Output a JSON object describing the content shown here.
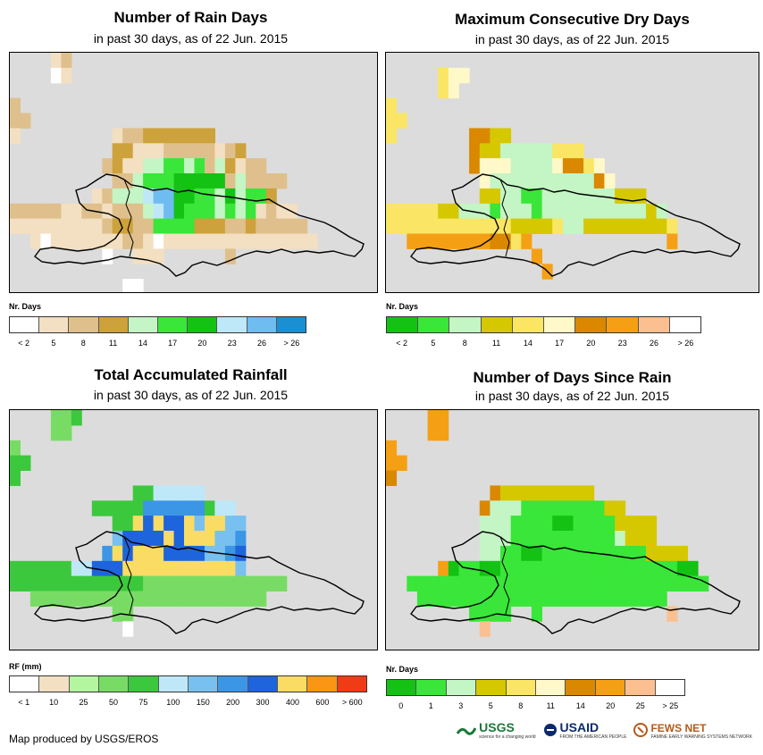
{
  "period_subtitle": "in past 30 days, as of 22 Jun. 2015",
  "footer": "Map produced by USGS/EROS",
  "logos": [
    {
      "name": "USGS",
      "tagline": "science for a changing world",
      "color": "#1a7a3a"
    },
    {
      "name": "USAID",
      "tagline": "FROM THE AMERICAN PEOPLE",
      "color": "#0b2a6b"
    },
    {
      "name": "FEWS NET",
      "tagline": "FAMINE EARLY WARNING SYSTEMS NETWORK",
      "color": "#b45a1a"
    }
  ],
  "panels": [
    {
      "id": "rain-days",
      "title": "Number of Rain Days",
      "subtitle": "in past 30 days, as of 22 Jun. 2015",
      "legend_title": "Nr. Days",
      "legend_colors": [
        "#ffffff",
        "#f3dfc1",
        "#dfc08c",
        "#cda23c",
        "#c4f5c4",
        "#39e639",
        "#14c214",
        "#bee8f8",
        "#6ebcf0",
        "#1a8fd2"
      ],
      "legend_labels": [
        "< 2",
        "5",
        "8",
        "11",
        "14",
        "17",
        "20",
        "23",
        "26",
        "> 26"
      ]
    },
    {
      "id": "max-dry-days",
      "title": "Maximum Consecutive Dry Days",
      "subtitle": "in past 30 days, as of 22 Jun. 2015",
      "legend_title": "Nr. Days",
      "legend_colors": [
        "#14c214",
        "#39e639",
        "#c4f5c4",
        "#d6c800",
        "#fae664",
        "#fff8c8",
        "#d98800",
        "#f5a014",
        "#fcc090",
        "#ffffff"
      ],
      "legend_labels": [
        "< 2",
        "5",
        "8",
        "11",
        "14",
        "17",
        "20",
        "23",
        "26",
        "> 26"
      ]
    },
    {
      "id": "total-rainfall",
      "title": "Total Accumulated Rainfall",
      "subtitle": "in past 30 days, as of 22 Jun. 2015",
      "legend_title": "RF (mm)",
      "legend_colors": [
        "#ffffff",
        "#f3dfc1",
        "#b4f5a0",
        "#78dc64",
        "#3cc83c",
        "#bee8f8",
        "#78c0f0",
        "#3c96e6",
        "#1e64dc",
        "#fadc64",
        "#fa9614",
        "#f03c14"
      ],
      "legend_labels": [
        "< 1",
        "10",
        "25",
        "50",
        "75",
        "100",
        "150",
        "200",
        "300",
        "400",
        "600",
        "> 600"
      ]
    },
    {
      "id": "days-since-rain",
      "title": "Number of Days Since Rain",
      "subtitle": "in past 30 days, as of 22 Jun. 2015",
      "legend_title": "Nr. Days",
      "legend_colors": [
        "#14c214",
        "#39e639",
        "#c4f5c4",
        "#d6c800",
        "#fae664",
        "#fff8c8",
        "#d98800",
        "#f5a014",
        "#fcc090",
        "#ffffff"
      ],
      "legend_labels": [
        "0",
        "1",
        "3",
        "5",
        "8",
        "11",
        "14",
        "20",
        "25",
        "> 25"
      ]
    }
  ],
  "grids": {
    "rain-days": [
      "....12..............................",
      "....01..............................",
      "....................................",
      "2...................................",
      "22..................................",
      "1.........1223333333................",
      "..........3311122222123.............",
      ".........2311445545243122...........",
      "..........22455566666242222.........",
      "........124447886655464553..........",
      "2222211221222478655545451211..........",
      "11111111123322555533322322222.......",
      "..1011111112210111111111111111......",
      ".........0..111......2..........",
      "..................................",
      "...........00......................."
    ],
    "max-dry-days": [
      "...........................",
      ".....455.....................",
      ".....45......................",
      "4....................................",
      "44...................................",
      "4.......6633............................",
      "........63322222444..........",
      "........6555222256645.......",
      ".........5222222222265........",
      ".........3322112222222333........",
      "444443322212221222222222232........",
      "4444444444443333422333333334.......",
      "..777777776647.............7.....",
      "..............7..............",
      "...............7............",
      "..........................."
    ],
    "total-rainfall": [
      "....334.............................",
      "....33..............................",
      "3...................................",
      "44..................................",
      "4...................................",
      "............4455555................",
      "........44444777777455.............",
      "..........4498988969966............",
      "..........6888898999667............",
      ".........79899988886678............",
      "44444455888999999999996.............",
      "444444444444433333333333333.........",
      "..33333333333333333333333...........",
      "..........33..........................",
      "...........0........................",
      "................................."
    ],
    "days-since-rain": [
      "....77..............................",
      "....77..............................",
      "7...................................",
      "77..................................",
      "6...................................",
      "..........6333333333................",
      ".........62221111111133.............",
      ".........22211110011113333..........",
      ".........22211111111112333..........",
      ".........22110011111111113333.......",
      ".....7011001111111111111111100......",
      "..11111111111111111111111111111.....",
      "...111111111111111111111111.........",
      "........1111..1............8........",
      ".........8.........................",
      "..........................."
    ]
  }
}
